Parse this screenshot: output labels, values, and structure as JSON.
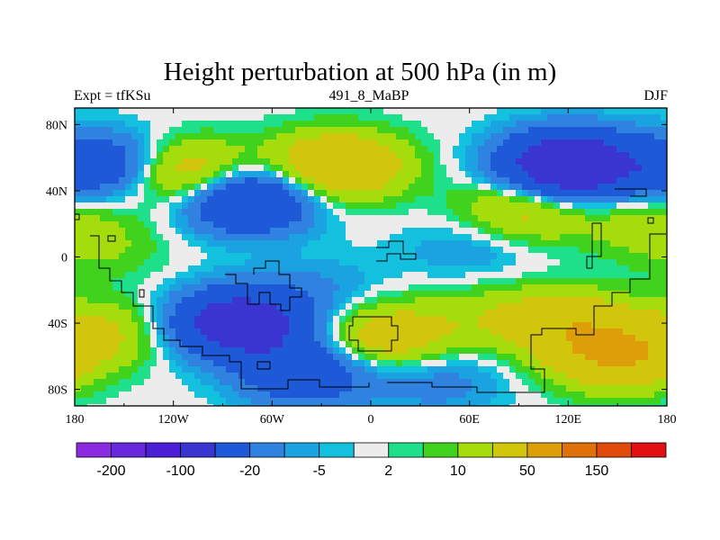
{
  "chart_data": {
    "type": "heatmap",
    "title": "Height perturbation at 500 hPa (in m)",
    "subtitle_left": "Expt = tfKSu",
    "subtitle_center": "491_8_MaBP",
    "subtitle_right": "DJF",
    "x_ticks": [
      {
        "value": -180,
        "label": "180"
      },
      {
        "value": -120,
        "label": "120W"
      },
      {
        "value": -60,
        "label": "60W"
      },
      {
        "value": 0,
        "label": "0"
      },
      {
        "value": 60,
        "label": "60E"
      },
      {
        "value": 120,
        "label": "120E"
      },
      {
        "value": 180,
        "label": "180"
      }
    ],
    "y_ticks": [
      {
        "value": 80,
        "label": "80N"
      },
      {
        "value": 40,
        "label": "40N"
      },
      {
        "value": 0,
        "label": "0"
      },
      {
        "value": -40,
        "label": "40S"
      },
      {
        "value": -80,
        "label": "80S"
      }
    ],
    "xlim": [
      -180,
      180
    ],
    "ylim": [
      -90,
      90
    ],
    "colorbar": {
      "colors": [
        "#8a2be2",
        "#6a28dc",
        "#4b1fd6",
        "#3a34d0",
        "#1e5ad8",
        "#2f82e0",
        "#1aa3e0",
        "#13c1df",
        "#ececec",
        "#1ee08a",
        "#40d21c",
        "#a4dc0c",
        "#d2c60c",
        "#de9e0a",
        "#e0700a",
        "#e04a0a",
        "#e21010"
      ],
      "labels": [
        {
          "boundary": 1,
          "text": "-200"
        },
        {
          "boundary": 3,
          "text": "-100"
        },
        {
          "boundary": 5,
          "text": "-20"
        },
        {
          "boundary": 7,
          "text": "-5"
        },
        {
          "boundary": 9,
          "text": "2"
        },
        {
          "boundary": 11,
          "text": "10"
        },
        {
          "boundary": 13,
          "text": "50"
        },
        {
          "boundary": 15,
          "text": "150"
        }
      ]
    },
    "anomaly_centers": [
      {
        "lon": -110,
        "lat": 50,
        "value": 40
      },
      {
        "lon": -20,
        "lat": 55,
        "value": 50
      },
      {
        "lon": 120,
        "lat": 55,
        "value": -100
      },
      {
        "lon": -165,
        "lat": 55,
        "value": -40
      },
      {
        "lon": -75,
        "lat": 35,
        "value": -60
      },
      {
        "lon": 95,
        "lat": 30,
        "value": 30
      },
      {
        "lon": 170,
        "lat": 20,
        "value": 15
      },
      {
        "lon": -160,
        "lat": 5,
        "value": 8
      },
      {
        "lon": 60,
        "lat": 5,
        "value": -10
      },
      {
        "lon": -80,
        "lat": -40,
        "value": -80
      },
      {
        "lon": -30,
        "lat": -20,
        "value": -10
      },
      {
        "lon": 10,
        "lat": -48,
        "value": 35
      },
      {
        "lon": -160,
        "lat": -45,
        "value": 20
      },
      {
        "lon": 120,
        "lat": -40,
        "value": 35
      },
      {
        "lon": 150,
        "lat": -60,
        "value": 50
      },
      {
        "lon": 70,
        "lat": -35,
        "value": 12
      },
      {
        "lon": -40,
        "lat": -70,
        "value": -40
      },
      {
        "lon": 40,
        "lat": -75,
        "value": -15
      }
    ]
  }
}
